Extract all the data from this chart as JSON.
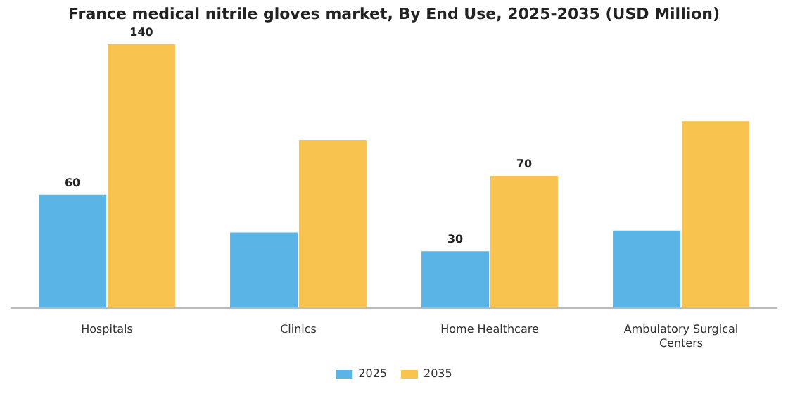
{
  "chart_data": {
    "type": "bar",
    "title": "France medical nitrile gloves market, By End Use, 2025-2035 (USD Million)",
    "categories": [
      "Hospitals",
      "Clinics",
      "Home Healthcare",
      "Ambulatory Surgical Centers"
    ],
    "series": [
      {
        "name": "2025",
        "color": "#5ab4e5",
        "values": [
          60,
          40,
          30,
          41
        ],
        "value_labels": [
          "60",
          null,
          "30",
          null
        ]
      },
      {
        "name": "2035",
        "color": "#f9c350",
        "values": [
          140,
          89,
          70,
          99
        ],
        "value_labels": [
          "140",
          null,
          "70",
          null
        ]
      }
    ],
    "legend": "bottom",
    "grid": false
  }
}
